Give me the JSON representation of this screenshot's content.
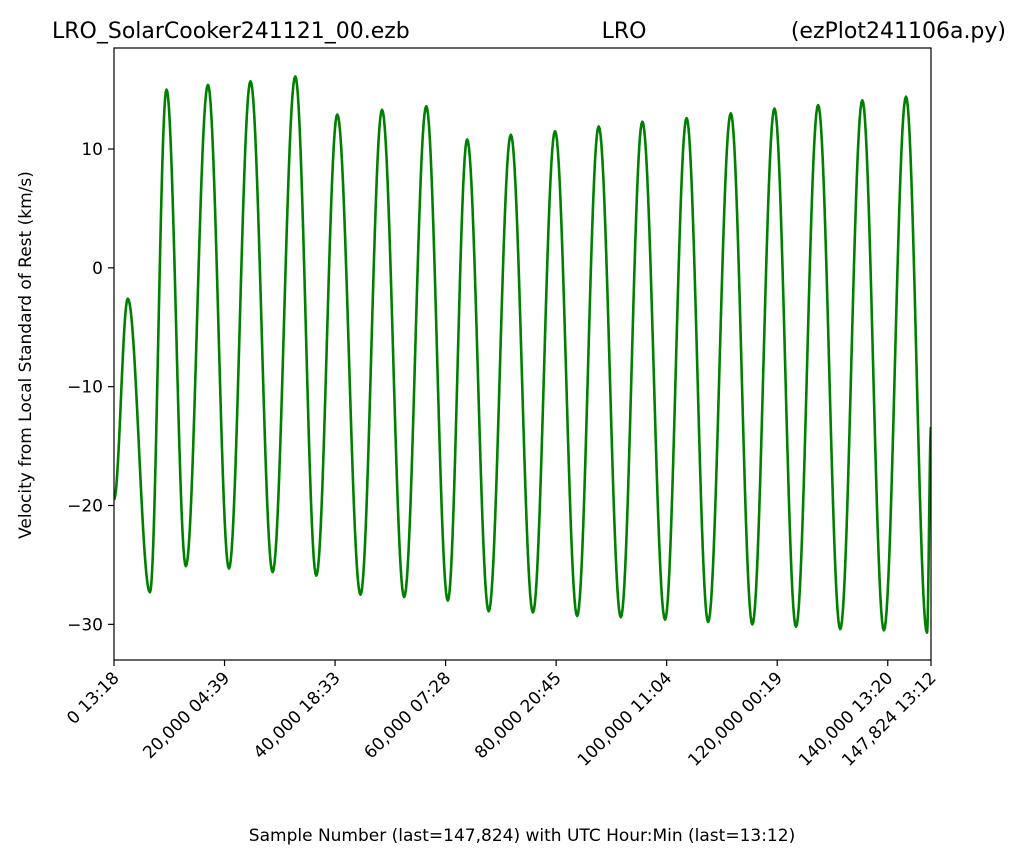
{
  "chart_data": {
    "type": "line",
    "title_left": "LRO_SolarCooker241121_00.ezb",
    "title_center": "LRO",
    "title_right": "(ezPlot241106a.py)",
    "xlabel": "Sample Number (last=147,824) with UTC Hour:Min (last=13:12)",
    "ylabel": "Velocity from Local Standard of Rest (km/s)",
    "xlim": [
      0,
      147824
    ],
    "ylim": [
      -33,
      18.5
    ],
    "yticks": [
      10,
      0,
      -10,
      -20,
      -30
    ],
    "ytick_labels": [
      "10",
      "0",
      "−10",
      "−20",
      "−30"
    ],
    "xticks": [
      0,
      20000,
      40000,
      60000,
      80000,
      100000,
      120000,
      140000,
      147824
    ],
    "xtick_labels": [
      "0  13:18",
      "20,000  04:39",
      "40,000  18:33",
      "60,000  07:28",
      "80,000  20:45",
      "100,000  11:04",
      "120,000  00:19",
      "140,000  13:20",
      "147,824  13:12"
    ],
    "grid": false,
    "line_color": "#008000",
    "series": [
      {
        "x": [
          0,
          2500,
          6500,
          9500,
          13000,
          17000,
          20800,
          24700,
          28700,
          32800,
          36600,
          40400,
          44600,
          48500,
          52500,
          56500,
          60400,
          63900,
          67800,
          71800,
          75800,
          79800,
          83800,
          87700,
          91700,
          95600,
          99700,
          103600,
          107500,
          111600,
          115500,
          119500,
          123400,
          127400,
          131400,
          135400,
          139300,
          143300,
          147100,
          147824
        ],
        "y": [
          -19.5,
          -2.6,
          -27.3,
          15.0,
          -25.1,
          15.4,
          -25.3,
          15.7,
          -25.6,
          16.1,
          -25.9,
          12.9,
          -27.5,
          13.3,
          -27.7,
          13.6,
          -28.0,
          10.8,
          -28.9,
          11.2,
          -29.0,
          11.5,
          -29.3,
          11.9,
          -29.4,
          12.3,
          -29.6,
          12.6,
          -29.8,
          13.0,
          -30.0,
          13.4,
          -30.2,
          13.7,
          -30.4,
          14.1,
          -30.5,
          14.4,
          -30.7,
          -13.4
        ]
      }
    ]
  }
}
